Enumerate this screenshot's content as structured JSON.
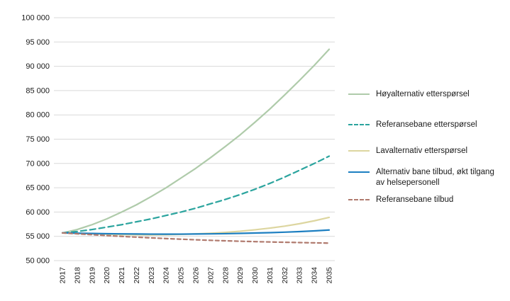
{
  "chart_data": {
    "type": "line",
    "title": "",
    "xlabel": "",
    "ylabel": "",
    "ylim": [
      50000,
      100000
    ],
    "ytick_step": 5000,
    "grid": true,
    "legend_position": "right",
    "x": [
      2017,
      2018,
      2019,
      2020,
      2021,
      2022,
      2023,
      2024,
      2025,
      2026,
      2027,
      2028,
      2029,
      2030,
      2031,
      2032,
      2033,
      2034,
      2035
    ],
    "series": [
      {
        "name": "Høyalternativ etterspørsel",
        "color": "#afcbaa",
        "style": "solid",
        "values": [
          55700,
          56400,
          57400,
          58600,
          60000,
          61500,
          63200,
          65000,
          67000,
          69000,
          71200,
          73500,
          75900,
          78500,
          81200,
          84100,
          87100,
          90200,
          93500
        ]
      },
      {
        "name": "Referansebane etterspørsel",
        "color": "#2ba49e",
        "style": "dashed",
        "values": [
          55700,
          56000,
          56400,
          56900,
          57400,
          58000,
          58600,
          59300,
          60000,
          60800,
          61700,
          62600,
          63600,
          64700,
          65900,
          67200,
          68600,
          70000,
          71500
        ]
      },
      {
        "name": "Lavalternativ etterspørsel",
        "color": "#ddd6a0",
        "style": "solid",
        "values": [
          55700,
          55600,
          55500,
          55420,
          55360,
          55320,
          55300,
          55330,
          55400,
          55500,
          55640,
          55820,
          56050,
          56350,
          56700,
          57100,
          57600,
          58200,
          58900
        ]
      },
      {
        "name": "Alternativ bane tilbud, økt tilgang av helsepersonell",
        "color": "#1d7fc1",
        "style": "solid",
        "values": [
          55700,
          55650,
          55600,
          55550,
          55510,
          55480,
          55460,
          55450,
          55460,
          55480,
          55510,
          55550,
          55610,
          55680,
          55760,
          55860,
          55980,
          56120,
          56300
        ]
      },
      {
        "name": "Referansebane tilbud",
        "color": "#b07a6e",
        "style": "dashed",
        "values": [
          55700,
          55520,
          55340,
          55160,
          54990,
          54830,
          54680,
          54540,
          54410,
          54290,
          54180,
          54080,
          53990,
          53910,
          53840,
          53780,
          53720,
          53660,
          53600
        ]
      }
    ],
    "y_tick_labels": [
      "50 000",
      "55 000",
      "60 000",
      "65 000",
      "70 000",
      "75 000",
      "80 000",
      "85 000",
      "90 000",
      "95 000",
      "100 000"
    ],
    "colors": {
      "grid": "#d9d9d9",
      "text": "#1a1a1a",
      "background": "#ffffff"
    }
  }
}
